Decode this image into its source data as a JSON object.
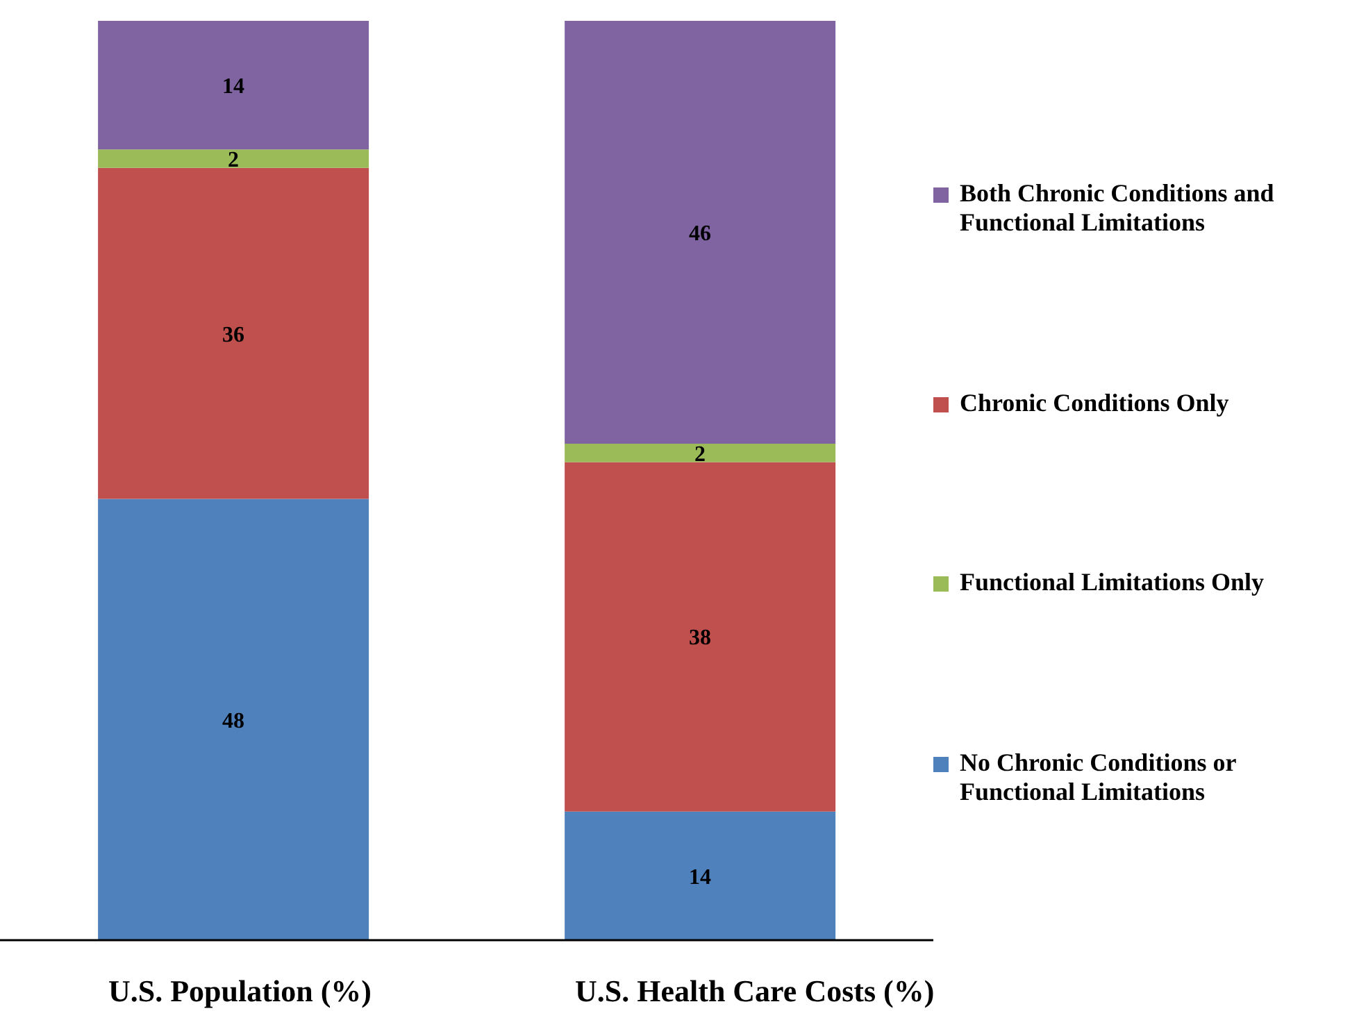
{
  "chart_data": {
    "type": "bar",
    "stacked": true,
    "categories": [
      "U.S. Population (%)",
      "U.S. Health Care Costs (%)"
    ],
    "series": [
      {
        "name": "No Chronic Conditions or Functional Limitations",
        "color": "#4f81bd",
        "values": [
          48,
          14
        ]
      },
      {
        "name": "Chronic Conditions Only",
        "color": "#c0504d",
        "values": [
          36,
          38
        ]
      },
      {
        "name": "Functional Limitations Only",
        "color": "#9bbb59",
        "values": [
          2,
          2
        ]
      },
      {
        "name": "Both Chronic Conditions and Functional Limitations",
        "color": "#8064a2",
        "values": [
          14,
          46
        ]
      }
    ],
    "data_labels": true,
    "legend": "right",
    "grid": false
  }
}
